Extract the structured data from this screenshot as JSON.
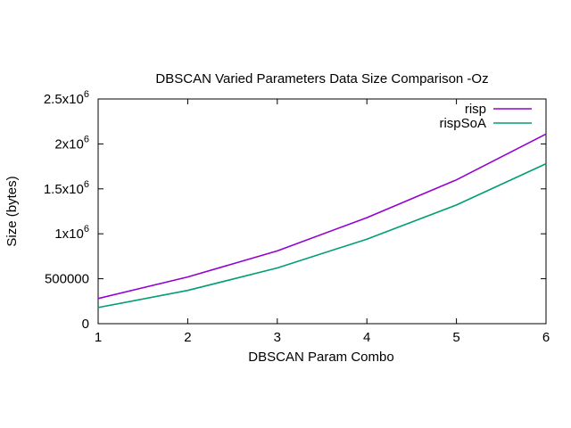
{
  "chart_data": {
    "type": "line",
    "title": "DBSCAN Varied Parameters Data Size Comparison -Oz",
    "xlabel": "DBSCAN Param Combo",
    "ylabel": "Size (bytes)",
    "x": [
      1,
      2,
      3,
      4,
      5,
      6
    ],
    "xlim": [
      1,
      6
    ],
    "ylim": [
      0,
      2500000
    ],
    "x_ticks": [
      {
        "value": 1,
        "label": "1"
      },
      {
        "value": 2,
        "label": "2"
      },
      {
        "value": 3,
        "label": "3"
      },
      {
        "value": 4,
        "label": "4"
      },
      {
        "value": 5,
        "label": "5"
      },
      {
        "value": 6,
        "label": "6"
      }
    ],
    "y_ticks": [
      {
        "value": 0,
        "base": "0",
        "exp": ""
      },
      {
        "value": 500000,
        "base": "500000",
        "exp": ""
      },
      {
        "value": 1000000,
        "base": "1x10",
        "exp": "6"
      },
      {
        "value": 1500000,
        "base": "1.5x10",
        "exp": "6"
      },
      {
        "value": 2000000,
        "base": "2x10",
        "exp": "6"
      },
      {
        "value": 2500000,
        "base": "2.5x10",
        "exp": "6"
      }
    ],
    "grid": false,
    "legend_position": "top-right",
    "series": [
      {
        "name": "risp",
        "color": "#9400d3",
        "values": [
          280000,
          520000,
          810000,
          1180000,
          1600000,
          2110000
        ]
      },
      {
        "name": "rispSoA",
        "color": "#009e73",
        "values": [
          180000,
          370000,
          620000,
          940000,
          1320000,
          1780000
        ]
      }
    ]
  }
}
